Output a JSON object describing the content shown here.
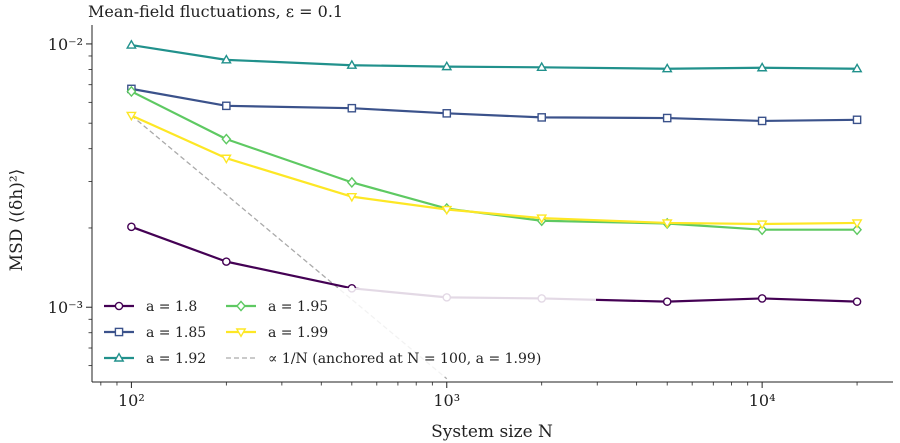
{
  "chart_data": {
    "type": "line",
    "title": "Mean-field fluctuations, ε = 0.1",
    "xlabel": "System size N",
    "ylabel": "MSD ⟨(δh)²⟩",
    "xscale": "log",
    "yscale": "log",
    "xlim": [
      75,
      26000
    ],
    "ylim": [
      0.00052,
      0.0118
    ],
    "x_ticks": [
      {
        "value": 100,
        "label": "10²"
      },
      {
        "value": 1000,
        "label": "10³"
      },
      {
        "value": 10000,
        "label": "10⁴"
      }
    ],
    "y_ticks": [
      {
        "value": 0.001,
        "label": "10⁻³"
      },
      {
        "value": 0.01,
        "label": "10⁻²"
      }
    ],
    "grid": false,
    "legend_position": "bottom-left",
    "x": [
      100,
      200,
      500,
      1000,
      2000,
      5000,
      10000,
      20000
    ],
    "series": [
      {
        "name": "a = 1.8",
        "color": "#440154",
        "marker": "circle",
        "values": [
          0.00202,
          0.00149,
          0.00118,
          0.00109,
          0.00108,
          0.00105,
          0.00108,
          0.00105
        ]
      },
      {
        "name": "a = 1.85",
        "color": "#3b528b",
        "marker": "square",
        "values": [
          0.00675,
          0.00582,
          0.0057,
          0.00545,
          0.00526,
          0.00523,
          0.0051,
          0.00515
        ]
      },
      {
        "name": "a = 1.92",
        "color": "#21918c",
        "marker": "triangle-up",
        "values": [
          0.0099,
          0.0087,
          0.0083,
          0.0082,
          0.00815,
          0.00805,
          0.00812,
          0.00805
        ]
      },
      {
        "name": "a = 1.95",
        "color": "#5ec962",
        "marker": "diamond",
        "values": [
          0.0066,
          0.00435,
          0.00298,
          0.00237,
          0.00213,
          0.00208,
          0.00197,
          0.00197
        ]
      },
      {
        "name": "a = 1.99",
        "color": "#fde725",
        "marker": "triangle-down",
        "values": [
          0.00535,
          0.00368,
          0.00263,
          0.00235,
          0.00218,
          0.00209,
          0.00207,
          0.00209
        ]
      }
    ],
    "reference": {
      "name": "∝ 1/N (anchored at N = 100, a = 1.99)",
      "color": "#aaaaaa",
      "style": "dashed",
      "x": [
        100,
        1000
      ],
      "values": [
        0.00535,
        0.000535
      ]
    }
  }
}
